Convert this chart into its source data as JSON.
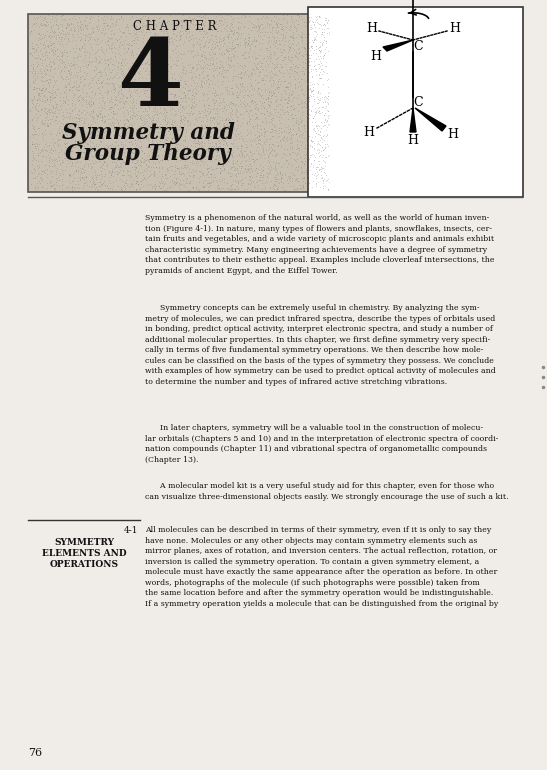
{
  "page_bg": "#f0ede8",
  "header_bg": "#c8bfb0",
  "chapter_label": "C H A P T E R",
  "chapter_number": "4",
  "chapter_title_line1": "Symmetry and",
  "chapter_title_line2": "Group Theory",
  "page_number": "76",
  "section_number": "4-1",
  "section_title_line1": "SYMMETRY",
  "section_title_line2": "ELEMENTS AND",
  "section_title_line3": "OPERATIONS",
  "para1": "Symmetry is a phenomenon of the natural world, as well as the world of human inven-\ntion (Figure 4-1). In nature, many types of flowers and plants, snowflakes, insects, cer-\ntain fruits and vegetables, and a wide variety of microscopic plants and animals exhibit\ncharacteristic symmetry. Many engineering achievements have a degree of symmetry\nthat contributes to their esthetic appeal. Examples include cloverleaf intersections, the\npyramids of ancient Egypt, and the Eiffel Tower.",
  "para2": "      Symmetry concepts can be extremely useful in chemistry. By analyzing the sym-\nmetry of molecules, we can predict infrared spectra, describe the types of orbitals used\nin bonding, predict optical activity, interpret electronic spectra, and study a number of\nadditional molecular properties. In this chapter, we first define symmetry very specifi-\ncally in terms of five fundamental symmetry operations. We then describe how mole-\ncules can be classified on the basis of the types of symmetry they possess. We conclude\nwith examples of how symmetry can be used to predict optical activity of molecules and\nto determine the number and types of infrared active stretching vibrations.",
  "para3": "      In later chapters, symmetry will be a valuable tool in the construction of molecu-\nlar orbitals (Chapters 5 and 10) and in the interpretation of electronic spectra of coordi-\nnation compounds (Chapter 11) and vibrational spectra of organometallic compounds\n(Chapter 13).",
  "para4": "      A molecular model kit is a very useful study aid for this chapter, even for those who\ncan visualize three-dimensional objects easily. We strongly encourage the use of such a kit.",
  "section_text": "All molecules can be described in terms of their symmetry, even if it is only to say they\nhave none. Molecules or any other objects may contain symmetry elements such as\nmirror planes, axes of rotation, and inversion centers. The actual reflection, rotation, or\ninversion is called the symmetry operation. To contain a given symmetry element, a\nmolecule must have exactly the same appearance after the operation as before. In other\nwords, photographs of the molecule (if such photographs were possible) taken from\nthe same location before and after the symmetry operation would be indistinguishable.\nIf a symmetry operation yields a molecule that can be distinguished from the original by"
}
